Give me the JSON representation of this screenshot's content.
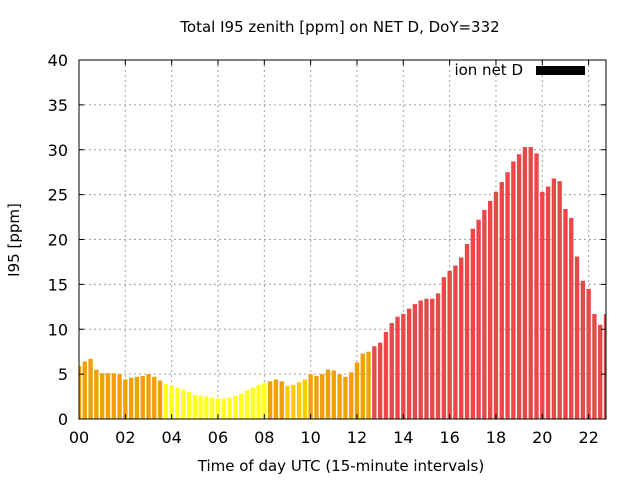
{
  "chart_data": {
    "type": "bar",
    "title": "Total I95 zenith [ppm] on NET D, DoY=332",
    "xlabel": "Time of day UTC (15-minute intervals)",
    "ylabel": "I95 [ppm]",
    "xlim": [
      0,
      22.75
    ],
    "ylim": [
      0,
      40
    ],
    "x_ticks": [
      "00",
      "02",
      "04",
      "06",
      "08",
      "10",
      "12",
      "14",
      "16",
      "18",
      "20",
      "22"
    ],
    "y_ticks": [
      "0",
      "5",
      "10",
      "15",
      "20",
      "25",
      "30",
      "35",
      "40"
    ],
    "grid": true,
    "legend": {
      "position": "top-right",
      "entries": [
        {
          "label": "ion net D",
          "color": "#000000"
        }
      ]
    },
    "level_colors": {
      "low": "#ffff22",
      "moderate": "#ffcc00",
      "elevated": "#f0a000",
      "high": "#e84848"
    },
    "series": [
      {
        "bin_hours": 0.25,
        "x_start": "00:00",
        "values": [
          5.9,
          6.4,
          6.7,
          5.5,
          5.1,
          5.1,
          5.1,
          5.0,
          4.4,
          4.6,
          4.7,
          4.8,
          5.0,
          4.7,
          4.3,
          3.9,
          3.7,
          3.5,
          3.3,
          3.0,
          2.7,
          2.6,
          2.5,
          2.4,
          2.3,
          2.3,
          2.4,
          2.6,
          2.8,
          3.2,
          3.5,
          3.8,
          4.0,
          4.2,
          4.4,
          4.2,
          3.7,
          3.8,
          4.1,
          4.4,
          5.0,
          4.8,
          5.0,
          5.5,
          5.4,
          5.0,
          4.7,
          5.2,
          6.3,
          7.3,
          7.5,
          8.1,
          8.5,
          9.7,
          10.7,
          11.4,
          11.7,
          12.3,
          12.8,
          13.2,
          13.4,
          13.4,
          14.0,
          15.8,
          16.5,
          17.1,
          18.0,
          19.5,
          21.2,
          22.2,
          23.3,
          24.3,
          25.3,
          26.4,
          27.5,
          28.7,
          29.5,
          30.3,
          30.3,
          29.6,
          25.3,
          25.9,
          26.8,
          26.5,
          23.4,
          22.4,
          18.1,
          15.4,
          14.5,
          11.7,
          10.5,
          11.7
        ],
        "levels": [
          "elevated",
          "elevated",
          "elevated",
          "elevated",
          "elevated",
          "elevated",
          "elevated",
          "elevated",
          "elevated",
          "elevated",
          "elevated",
          "elevated",
          "elevated",
          "elevated",
          "elevated",
          "low",
          "low",
          "low",
          "low",
          "low",
          "low",
          "low",
          "low",
          "low",
          "low",
          "low",
          "low",
          "low",
          "low",
          "low",
          "low",
          "low",
          "low",
          "elevated",
          "elevated",
          "elevated",
          "moderate",
          "moderate",
          "moderate",
          "moderate",
          "elevated",
          "elevated",
          "elevated",
          "elevated",
          "elevated",
          "elevated",
          "elevated",
          "elevated",
          "elevated",
          "elevated",
          "elevated",
          "high",
          "high",
          "high",
          "high",
          "high",
          "high",
          "high",
          "high",
          "high",
          "high",
          "high",
          "high",
          "high",
          "high",
          "high",
          "high",
          "high",
          "high",
          "high",
          "high",
          "high",
          "high",
          "high",
          "high",
          "high",
          "high",
          "high",
          "high",
          "high",
          "high",
          "high",
          "high",
          "high",
          "high",
          "high",
          "high",
          "high",
          "high",
          "high",
          "high",
          "high"
        ]
      }
    ]
  }
}
